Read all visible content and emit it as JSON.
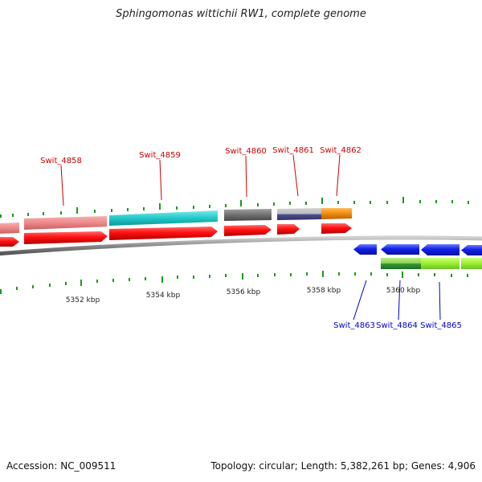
{
  "title": "Sphingomonas wittichii RW1, complete genome",
  "footer": {
    "accession": "Accession: NC_009511",
    "summary": "Topology: circular; Length: 5,382,261 bp; Genes: 4,906"
  },
  "map": {
    "axis_labels": [
      "5352 kbp",
      "5354 kbp",
      "5356 kbp",
      "5358 kbp",
      "5360 kbp"
    ],
    "forward_genes": [
      {
        "label": "Swit_4858",
        "cog_color": "#ee8888"
      },
      {
        "label": "Swit_4859",
        "cog_color": "#22c8c8"
      },
      {
        "label": "Swit_4860",
        "cog_color": "#707070"
      },
      {
        "label": "Swit_4861",
        "cog_color": "#505090"
      },
      {
        "label": "Swit_4862",
        "cog_color": "#ee8a10"
      }
    ],
    "reverse_genes": [
      {
        "label": "Swit_4863",
        "cog_color": null
      },
      {
        "label": "Swit_4864",
        "cog_color": "#3a9a3a"
      },
      {
        "label": "Swit_4865",
        "cog_color": "#99ee33"
      }
    ],
    "colors": {
      "cds_forward": "#ff1010",
      "cds_reverse": "#1020e8",
      "backbone": "#888888",
      "tick": "#1a9a1a",
      "forward_label": "#cc0000",
      "reverse_label": "#0000cc"
    }
  }
}
